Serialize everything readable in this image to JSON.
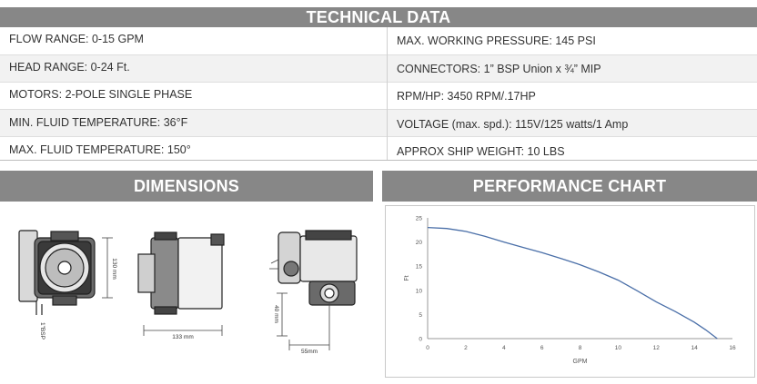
{
  "technical": {
    "title": "TECHNICAL DATA",
    "rows": [
      {
        "left": "FLOW RANGE: 0-15 GPM",
        "right": "MAX. WORKING PRESSURE: 145 PSI"
      },
      {
        "left": "HEAD RANGE: 0-24 Ft.",
        "right": "CONNECTORS: 1” BSP Union x ¾” MIP"
      },
      {
        "left": "MOTORS: 2-POLE SINGLE PHASE",
        "right": "RPM/HP: 3450 RPM/.17HP"
      },
      {
        "left": "MIN. FLUID TEMPERATURE: 36°F",
        "right": "VOLTAGE (max. spd.): 115V/125 watts/1 Amp"
      },
      {
        "left": "MAX. FLUID TEMPERATURE: 150°",
        "right": "APPROX SHIP WEIGHT: 10 LBS"
      }
    ]
  },
  "dimensions": {
    "title": "DIMENSIONS",
    "height_label": "130 mm",
    "width_label": "133 mm",
    "depth_label": "40 mm",
    "offset_label": "55mm",
    "port_label": "1\"BSP"
  },
  "performance": {
    "title": "PERFORMANCE CHART"
  },
  "chart_data": {
    "type": "line",
    "xlabel": "GPM",
    "ylabel": "Ft",
    "xlim": [
      0,
      16
    ],
    "ylim": [
      0,
      25
    ],
    "xticks": [
      0,
      2,
      4,
      6,
      8,
      10,
      12,
      14,
      16
    ],
    "yticks": [
      0,
      5,
      10,
      15,
      20,
      25
    ],
    "grid": false,
    "series": [
      {
        "x": [
          0,
          1,
          2,
          3,
          4,
          5,
          6,
          7,
          8,
          9,
          10,
          11,
          12,
          13,
          14,
          14.6,
          15.2
        ],
        "y": [
          23,
          22.8,
          22.2,
          21.2,
          20,
          18.9,
          17.8,
          16.6,
          15.3,
          13.8,
          12.1,
          9.9,
          7.6,
          5.6,
          3.4,
          1.8,
          0
        ],
        "color": "#4a6fa8"
      }
    ]
  }
}
